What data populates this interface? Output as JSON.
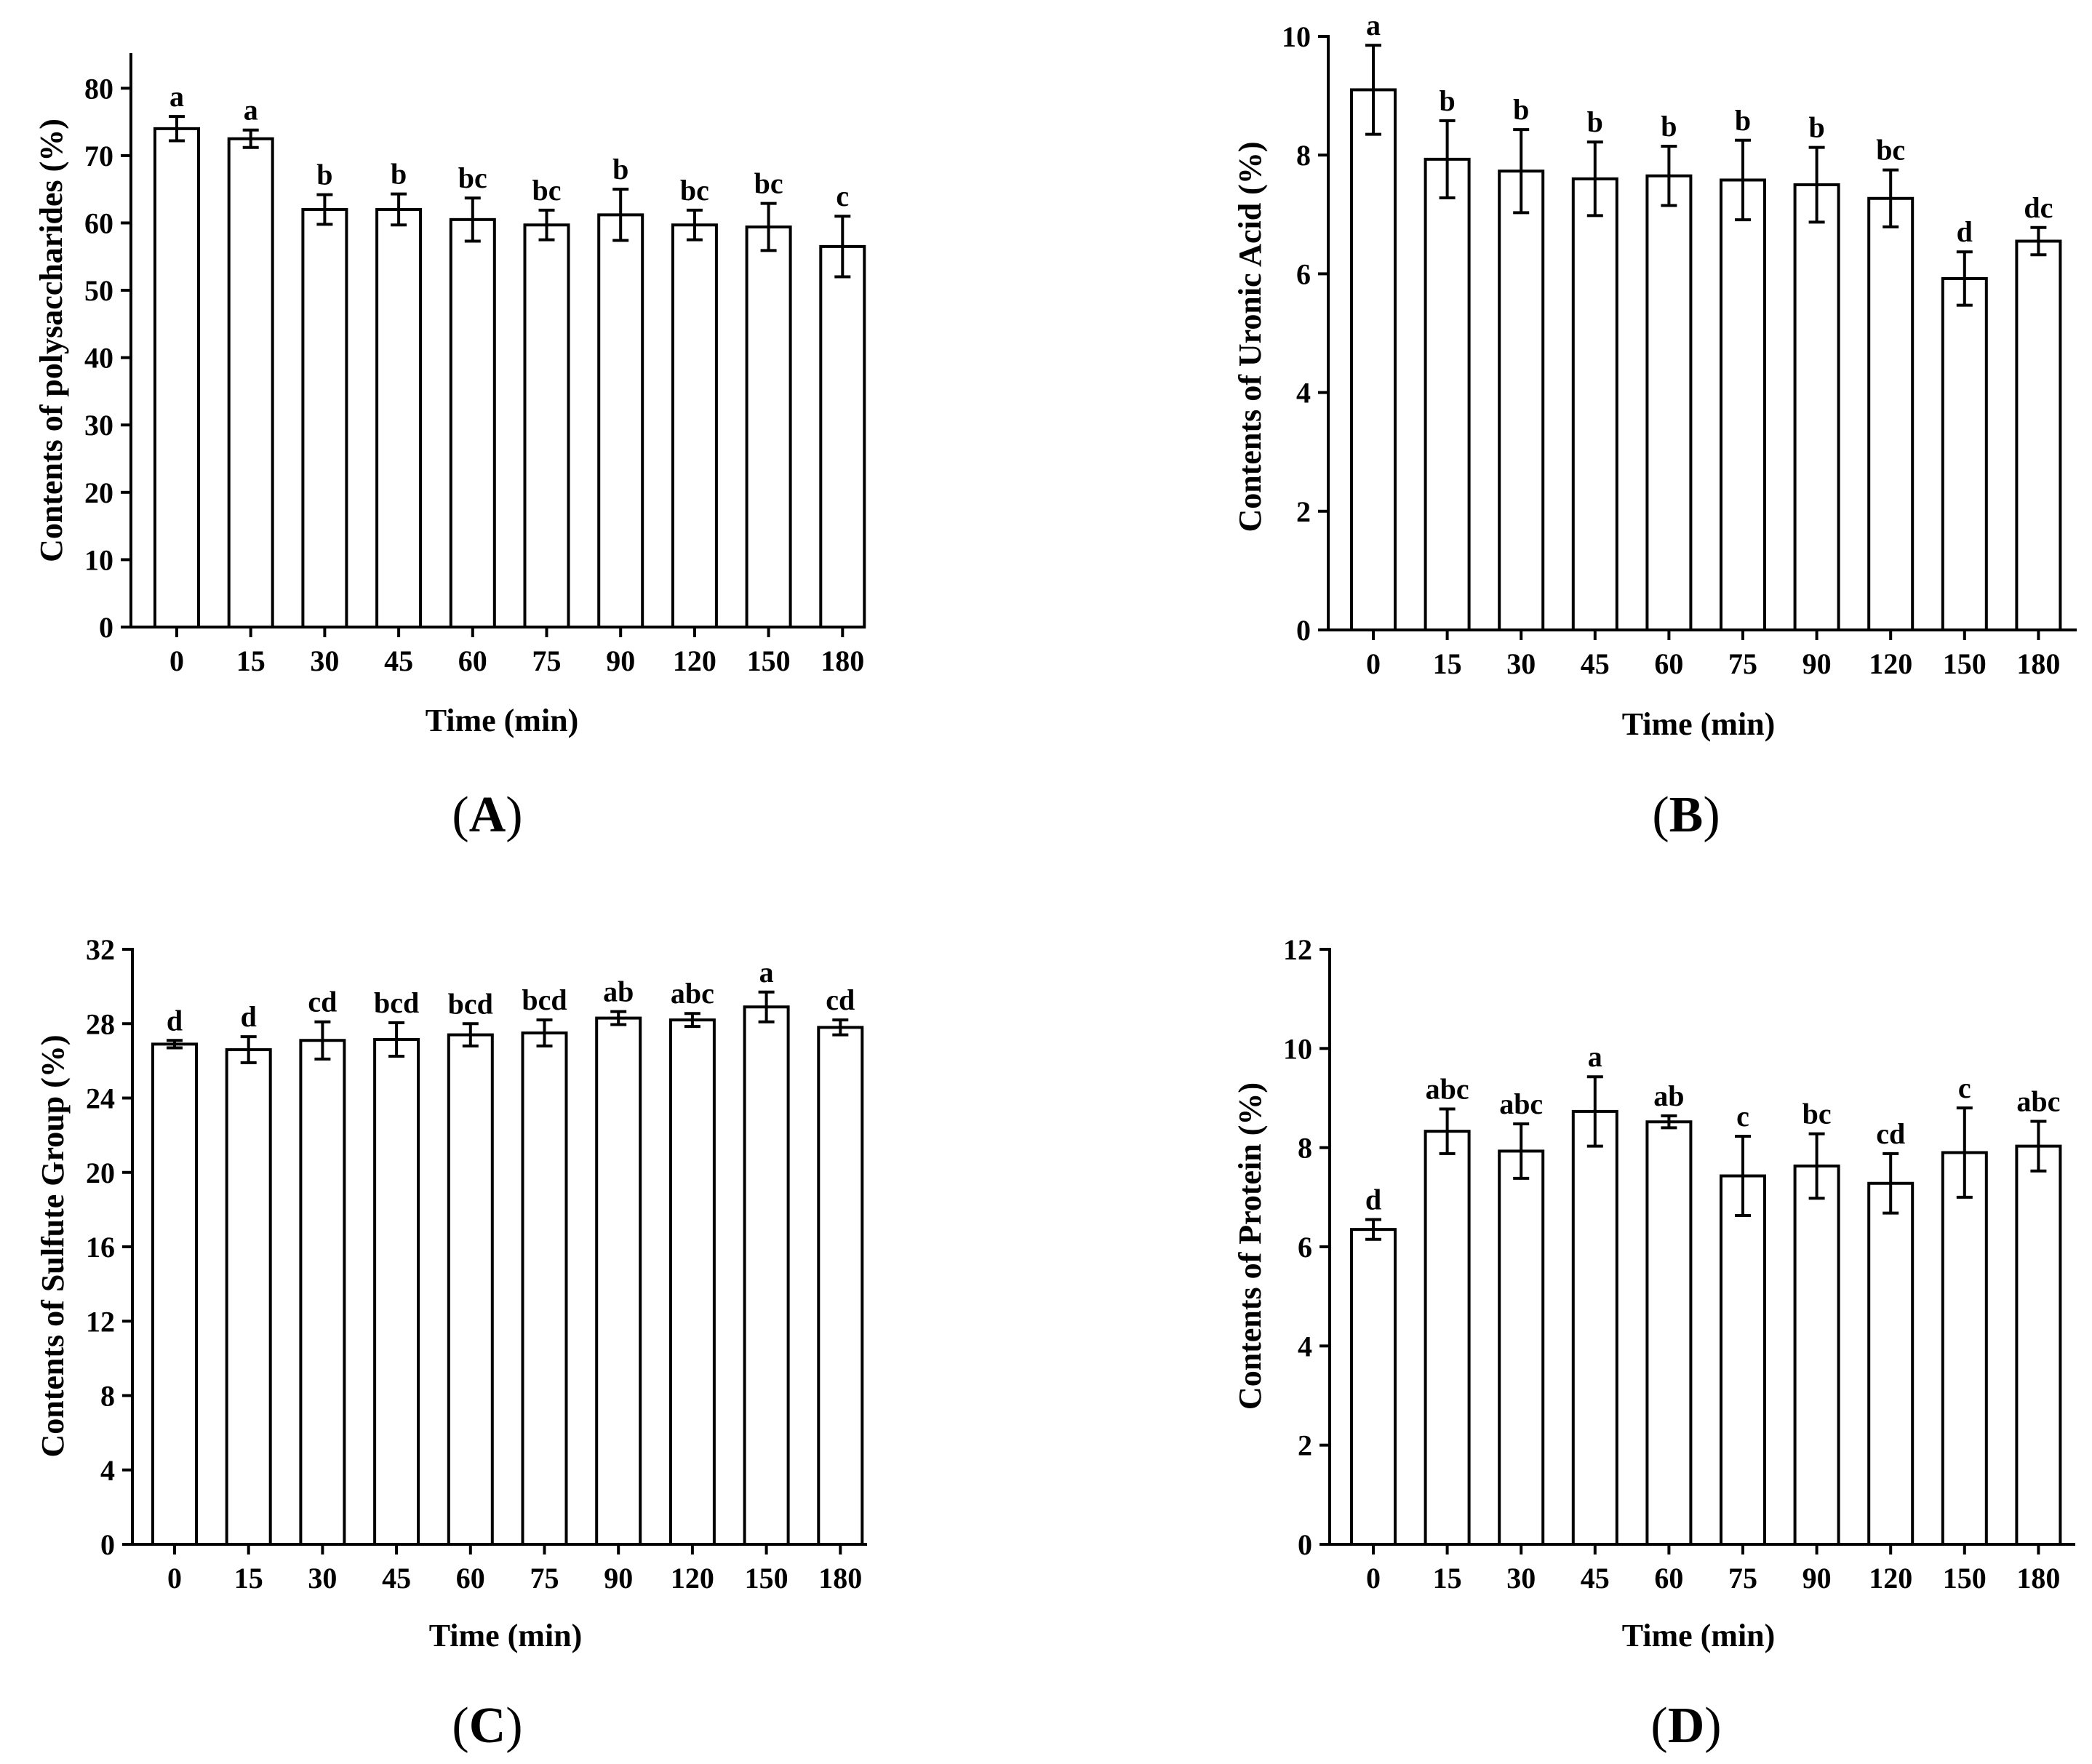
{
  "figure": {
    "panels": [
      "A",
      "B",
      "C",
      "D"
    ]
  },
  "chart_data": [
    {
      "id": "A",
      "panel_label": "A",
      "type": "bar",
      "xlabel": "Time (min)",
      "ylabel": "Contents of polysaccharides (%)",
      "categories": [
        "0",
        "15",
        "30",
        "45",
        "60",
        "75",
        "90",
        "120",
        "150",
        "180"
      ],
      "values": [
        74,
        72.5,
        62,
        62,
        60.5,
        59.7,
        61.2,
        59.7,
        59.4,
        56.5
      ],
      "errors": [
        1.8,
        1.3,
        2.2,
        2.3,
        3.2,
        2.2,
        3.8,
        2.2,
        3.5,
        4.5
      ],
      "significance": [
        "a",
        "a",
        "b",
        "b",
        "bc",
        "bc",
        "b",
        "bc",
        "bc",
        "c"
      ],
      "ylim": [
        0,
        85
      ],
      "yticks": [
        0,
        10,
        20,
        30,
        40,
        50,
        60,
        70,
        80
      ]
    },
    {
      "id": "B",
      "panel_label": "B",
      "type": "bar",
      "xlabel": "Time (min)",
      "ylabel": "Contents of Uronic Acid (%)",
      "categories": [
        "0",
        "15",
        "30",
        "45",
        "60",
        "75",
        "90",
        "120",
        "150",
        "180"
      ],
      "values": [
        9.1,
        7.93,
        7.73,
        7.6,
        7.65,
        7.58,
        7.5,
        7.27,
        5.92,
        6.55
      ],
      "errors": [
        0.75,
        0.65,
        0.7,
        0.62,
        0.5,
        0.67,
        0.63,
        0.48,
        0.45,
        0.23
      ],
      "significance": [
        "a",
        "b",
        "b",
        "b",
        "b",
        "b",
        "b",
        "bc",
        "d",
        "dc"
      ],
      "ylim": [
        0,
        10
      ],
      "yticks": [
        0,
        2,
        4,
        6,
        8,
        10
      ]
    },
    {
      "id": "C",
      "panel_label": "C",
      "type": "bar",
      "xlabel": "Time (min)",
      "ylabel": "Contents of Sulfute Group (%)",
      "categories": [
        "0",
        "15",
        "30",
        "45",
        "60",
        "75",
        "90",
        "120",
        "150",
        "180"
      ],
      "values": [
        26.9,
        26.6,
        27.1,
        27.15,
        27.4,
        27.5,
        28.3,
        28.2,
        28.9,
        27.8
      ],
      "errors": [
        0.2,
        0.7,
        1.0,
        0.9,
        0.6,
        0.7,
        0.35,
        0.35,
        0.8,
        0.4
      ],
      "significance": [
        "d",
        "d",
        "cd",
        "bcd",
        "bcd",
        "bcd",
        "ab",
        "abc",
        "a",
        "cd"
      ],
      "ylim": [
        0,
        32
      ],
      "yticks": [
        0,
        4,
        8,
        12,
        16,
        20,
        24,
        28,
        32
      ]
    },
    {
      "id": "D",
      "panel_label": "D",
      "type": "bar",
      "xlabel": "Time (min)",
      "ylabel": "Contents of Protein (%)",
      "categories": [
        "0",
        "15",
        "30",
        "45",
        "60",
        "75",
        "90",
        "120",
        "150",
        "180"
      ],
      "values": [
        6.35,
        8.33,
        7.93,
        8.73,
        8.52,
        7.43,
        7.63,
        7.28,
        7.9,
        8.03
      ],
      "errors": [
        0.2,
        0.45,
        0.55,
        0.7,
        0.12,
        0.8,
        0.65,
        0.6,
        0.9,
        0.5
      ],
      "significance": [
        "d",
        "abc",
        "abc",
        "a",
        "ab",
        "c",
        "bc",
        "cd",
        "c",
        "abc"
      ],
      "ylim": [
        0,
        12
      ],
      "yticks": [
        0,
        2,
        4,
        6,
        8,
        10,
        12
      ]
    }
  ]
}
